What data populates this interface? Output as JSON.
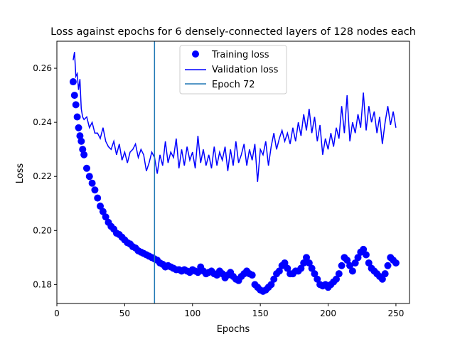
{
  "chart_data": {
    "type": "scatter",
    "title": "Loss against epochs for 6 densely-connected layers of 128 nodes each",
    "xlabel": "Epochs",
    "ylabel": "Loss",
    "xlim": [
      0,
      260
    ],
    "ylim": [
      0.173,
      0.27
    ],
    "xticks": [
      0,
      50,
      100,
      150,
      200,
      250
    ],
    "yticks": [
      0.18,
      0.2,
      0.22,
      0.24,
      0.26
    ],
    "xtick_labels": [
      "0",
      "50",
      "100",
      "150",
      "200",
      "250"
    ],
    "ytick_labels": [
      "0.18",
      "0.20",
      "0.22",
      "0.24",
      "0.26"
    ],
    "legend": {
      "position": "top-center",
      "entries": [
        "Training loss",
        "Validation loss",
        "Epoch 72"
      ]
    },
    "vline": {
      "x": 72,
      "label": "Epoch 72",
      "color": "#1f77b4"
    },
    "series": [
      {
        "name": "Training loss",
        "style": "points",
        "color": "#0000ff",
        "x": [
          12,
          13,
          14,
          15,
          16,
          17,
          18,
          19,
          20,
          22,
          24,
          26,
          28,
          30,
          32,
          34,
          36,
          38,
          40,
          42,
          44,
          46,
          48,
          50,
          52,
          54,
          56,
          58,
          60,
          62,
          64,
          66,
          68,
          70,
          72,
          74,
          76,
          78,
          80,
          82,
          84,
          86,
          88,
          90,
          92,
          94,
          96,
          98,
          100,
          102,
          104,
          106,
          108,
          110,
          112,
          114,
          116,
          118,
          120,
          122,
          124,
          126,
          128,
          130,
          132,
          134,
          136,
          138,
          140,
          142,
          144,
          146,
          148,
          150,
          152,
          154,
          156,
          158,
          160,
          162,
          164,
          166,
          168,
          170,
          172,
          174,
          176,
          178,
          180,
          182,
          184,
          186,
          188,
          190,
          192,
          194,
          196,
          198,
          200,
          202,
          204,
          206,
          208,
          210,
          212,
          214,
          216,
          218,
          220,
          222,
          224,
          226,
          228,
          230,
          232,
          234,
          236,
          238,
          240,
          242,
          244,
          246,
          248,
          250
        ],
        "y": [
          0.255,
          0.25,
          0.2465,
          0.242,
          0.238,
          0.235,
          0.233,
          0.23,
          0.228,
          0.223,
          0.22,
          0.2175,
          0.215,
          0.212,
          0.209,
          0.207,
          0.205,
          0.203,
          0.2015,
          0.2005,
          0.199,
          0.1985,
          0.1975,
          0.1965,
          0.1955,
          0.195,
          0.194,
          0.1935,
          0.1925,
          0.192,
          0.1915,
          0.191,
          0.1905,
          0.19,
          0.1895,
          0.189,
          0.188,
          0.1875,
          0.1865,
          0.187,
          0.1865,
          0.186,
          0.1855,
          0.1855,
          0.185,
          0.1855,
          0.185,
          0.1845,
          0.1855,
          0.185,
          0.1845,
          0.1865,
          0.185,
          0.184,
          0.1845,
          0.185,
          0.184,
          0.1835,
          0.185,
          0.184,
          0.1825,
          0.1835,
          0.1845,
          0.183,
          0.182,
          0.1815,
          0.183,
          0.184,
          0.185,
          0.184,
          0.1835,
          0.18,
          0.179,
          0.178,
          0.1775,
          0.178,
          0.179,
          0.18,
          0.182,
          0.184,
          0.185,
          0.187,
          0.188,
          0.186,
          0.184,
          0.184,
          0.185,
          0.185,
          0.186,
          0.188,
          0.19,
          0.188,
          0.186,
          0.184,
          0.182,
          0.18,
          0.1795,
          0.18,
          0.179,
          0.18,
          0.181,
          0.182,
          0.184,
          0.187,
          0.19,
          0.189,
          0.187,
          0.185,
          0.188,
          0.19,
          0.192,
          0.193,
          0.191,
          0.188,
          0.186,
          0.185,
          0.184,
          0.183,
          0.182,
          0.184,
          0.187,
          0.19,
          0.189,
          0.188
        ]
      },
      {
        "name": "Validation loss",
        "style": "line",
        "color": "#0000ff",
        "x": [
          12,
          13,
          14,
          15,
          16,
          17,
          18,
          19,
          20,
          22,
          24,
          26,
          28,
          30,
          32,
          34,
          36,
          38,
          40,
          42,
          44,
          46,
          48,
          50,
          52,
          54,
          56,
          58,
          60,
          62,
          64,
          66,
          68,
          70,
          72,
          74,
          76,
          78,
          80,
          82,
          84,
          86,
          88,
          90,
          92,
          94,
          96,
          98,
          100,
          102,
          104,
          106,
          108,
          110,
          112,
          114,
          116,
          118,
          120,
          122,
          124,
          126,
          128,
          130,
          132,
          134,
          136,
          138,
          140,
          142,
          144,
          146,
          148,
          150,
          152,
          154,
          156,
          158,
          160,
          162,
          164,
          166,
          168,
          170,
          172,
          174,
          176,
          178,
          180,
          182,
          184,
          186,
          188,
          190,
          192,
          194,
          196,
          198,
          200,
          202,
          204,
          206,
          208,
          210,
          212,
          214,
          216,
          218,
          220,
          222,
          224,
          226,
          228,
          230,
          232,
          234,
          236,
          238,
          240,
          242,
          244,
          246,
          248,
          250
        ],
        "y": [
          0.263,
          0.266,
          0.257,
          0.258,
          0.252,
          0.256,
          0.245,
          0.242,
          0.241,
          0.242,
          0.238,
          0.24,
          0.236,
          0.236,
          0.234,
          0.238,
          0.233,
          0.231,
          0.23,
          0.233,
          0.228,
          0.232,
          0.226,
          0.229,
          0.225,
          0.229,
          0.23,
          0.232,
          0.227,
          0.23,
          0.228,
          0.222,
          0.225,
          0.229,
          0.227,
          0.221,
          0.228,
          0.224,
          0.233,
          0.225,
          0.229,
          0.227,
          0.234,
          0.223,
          0.23,
          0.224,
          0.231,
          0.226,
          0.229,
          0.223,
          0.235,
          0.225,
          0.23,
          0.224,
          0.228,
          0.223,
          0.231,
          0.224,
          0.229,
          0.226,
          0.231,
          0.222,
          0.23,
          0.224,
          0.233,
          0.225,
          0.228,
          0.232,
          0.224,
          0.23,
          0.226,
          0.232,
          0.218,
          0.23,
          0.228,
          0.233,
          0.224,
          0.231,
          0.236,
          0.23,
          0.234,
          0.237,
          0.233,
          0.236,
          0.232,
          0.238,
          0.233,
          0.24,
          0.235,
          0.243,
          0.237,
          0.245,
          0.236,
          0.242,
          0.233,
          0.239,
          0.228,
          0.234,
          0.23,
          0.236,
          0.231,
          0.238,
          0.234,
          0.246,
          0.236,
          0.25,
          0.233,
          0.24,
          0.236,
          0.243,
          0.238,
          0.251,
          0.237,
          0.246,
          0.24,
          0.244,
          0.236,
          0.242,
          0.232,
          0.24,
          0.246,
          0.239,
          0.244,
          0.238
        ]
      }
    ]
  }
}
